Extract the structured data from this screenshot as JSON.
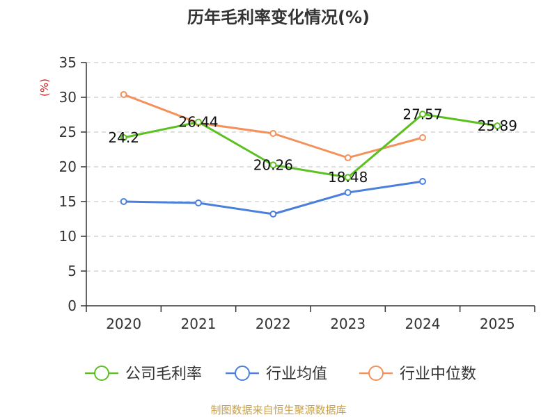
{
  "chart_data": {
    "type": "line",
    "title": "历年毛利率变化情况(%)",
    "ylabel": "(%)",
    "xlabel": "",
    "categories": [
      "2020",
      "2021",
      "2022",
      "2023",
      "2024",
      "2025"
    ],
    "ylim": [
      0,
      35
    ],
    "yticks": [
      0,
      5,
      10,
      15,
      20,
      25,
      30,
      35
    ],
    "grid": true,
    "legend_position": "bottom",
    "series": [
      {
        "name": "公司毛利率",
        "color": "#5cc020",
        "values": [
          24.2,
          26.44,
          20.26,
          18.48,
          27.57,
          25.89
        ],
        "labels": [
          "24.2",
          "26.44",
          "20.26",
          "18.48",
          "27.57",
          "25.89"
        ]
      },
      {
        "name": "行业均值",
        "color": "#4a7fdc",
        "values": [
          15.0,
          14.8,
          13.2,
          16.3,
          17.9,
          null
        ]
      },
      {
        "name": "行业中位数",
        "color": "#f4905a",
        "values": [
          30.4,
          26.3,
          24.8,
          21.3,
          24.2,
          null
        ]
      }
    ],
    "source": "制图数据来自恒生聚源数据库",
    "unit_color": "#cc2222",
    "source_color": "#c8a04a"
  }
}
